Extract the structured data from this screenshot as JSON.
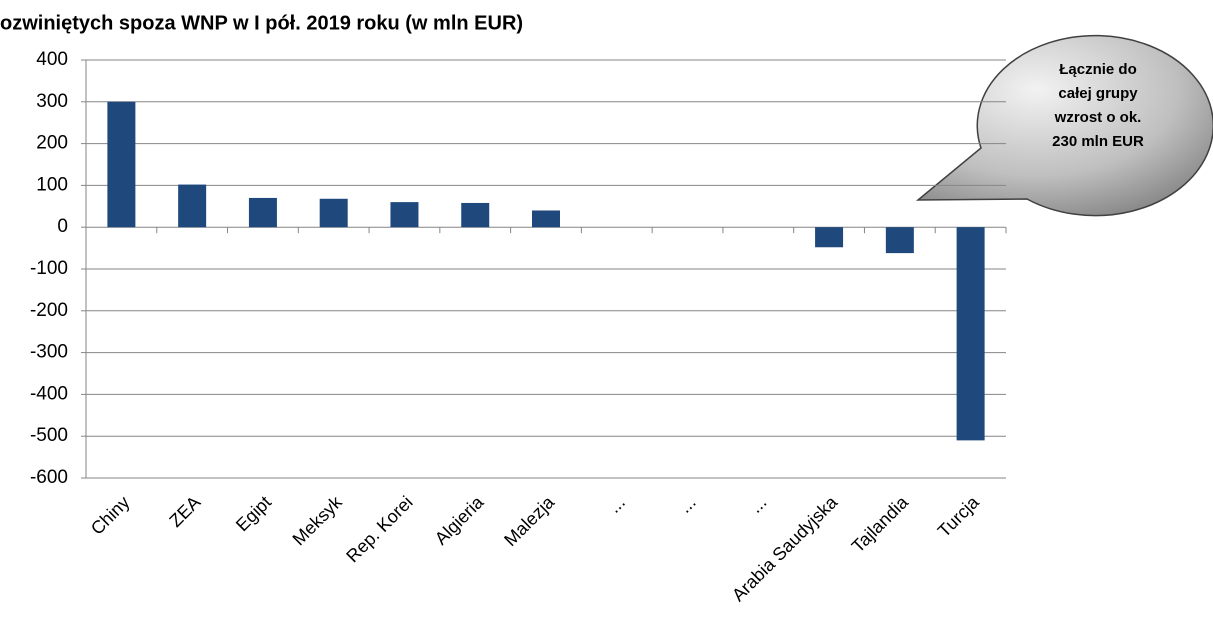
{
  "chart_data": {
    "type": "bar",
    "title": "ozwiniętych spoza WNP w I pół. 2019 roku (w mln EUR)",
    "categories": [
      "Chiny",
      "ZEA",
      "Egipt",
      "Meksyk",
      "Rep. Korei",
      "Algieria",
      "Malezja",
      "...",
      "...",
      "...",
      "Arabia Saudyjska",
      "Tajlandia",
      "Turcja"
    ],
    "values": [
      300,
      102,
      70,
      68,
      60,
      58,
      40,
      null,
      null,
      null,
      -48,
      -62,
      -510
    ],
    "color": "#1f497d",
    "ylim": [
      -600,
      400
    ],
    "yticks": [
      -600,
      -500,
      -400,
      -300,
      -200,
      -100,
      0,
      100,
      200,
      300,
      400
    ],
    "grid": true,
    "annotation": [
      "Łącznie do",
      "całej grupy",
      "wzrost o ok.",
      "230 mln EUR"
    ]
  }
}
